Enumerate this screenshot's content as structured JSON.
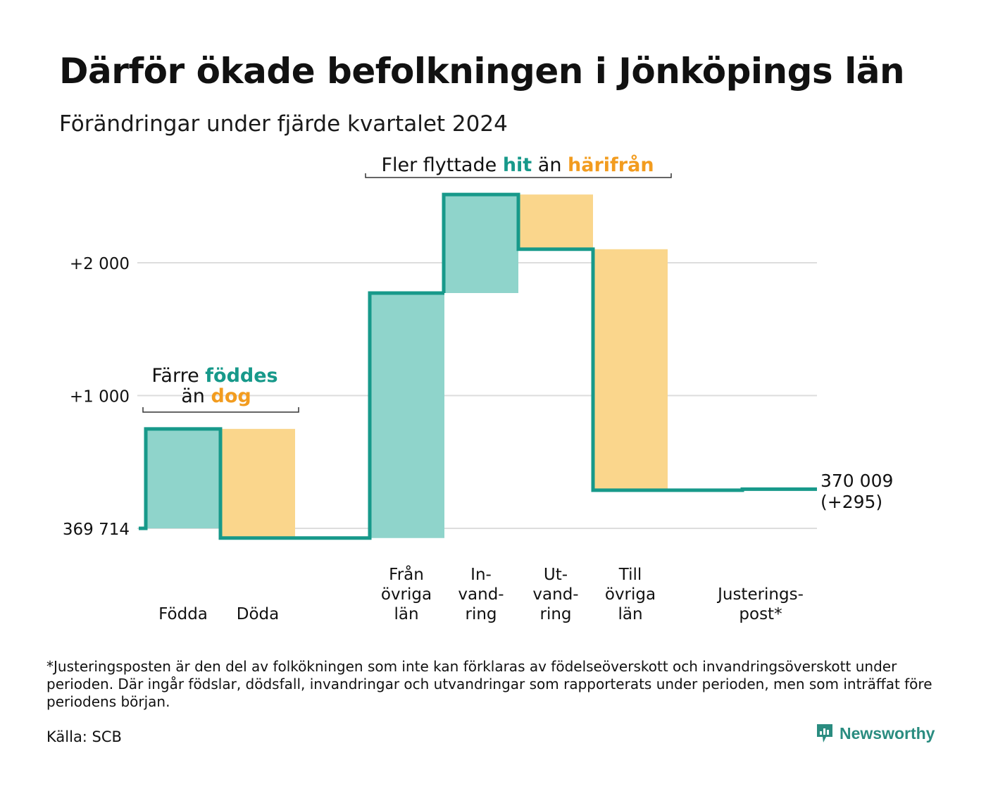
{
  "title": "Därför ökade befolkningen i Jönköpings län",
  "subtitle": "Förändringar under fjärde kvartalet 2024",
  "colors": {
    "increase": "#8fd4cb",
    "decrease": "#fad68c",
    "line": "#17998a",
    "accent_orange": "#f29c1f",
    "grid": "#dddddd"
  },
  "chart_data": {
    "type": "waterfall",
    "start_value": 369714,
    "y_ticks": [
      {
        "value": 0,
        "label": "369 714"
      },
      {
        "value": 1000,
        "label": "+1 000"
      },
      {
        "value": 2000,
        "label": "+2 000"
      }
    ],
    "steps": [
      {
        "label_lines": [
          "Födda"
        ],
        "delta": 749,
        "kind": "increase"
      },
      {
        "label_lines": [
          "Döda"
        ],
        "delta": -822,
        "kind": "decrease"
      },
      {
        "label_lines": [
          "Från",
          "övriga",
          "län"
        ],
        "delta": 1845,
        "kind": "increase"
      },
      {
        "label_lines": [
          "In-",
          "vand-",
          "ring"
        ],
        "delta": 742,
        "kind": "increase"
      },
      {
        "label_lines": [
          "Ut-",
          "vand-",
          "ring"
        ],
        "delta": -412,
        "kind": "decrease"
      },
      {
        "label_lines": [
          "Till",
          "övriga",
          "län"
        ],
        "delta": -1815,
        "kind": "decrease"
      },
      {
        "label_lines": [
          "Justerings-",
          "post*"
        ],
        "delta": 8,
        "kind": "increase"
      }
    ],
    "end_value_label": "370 009",
    "end_change_label": "(+295)",
    "annotations": [
      {
        "parts": [
          {
            "text": "Färre ",
            "style": "normal"
          },
          {
            "text": "föddes",
            "style": "teal"
          }
        ],
        "line2": [
          {
            "text": "än ",
            "style": "normal"
          },
          {
            "text": "dog",
            "style": "orange"
          }
        ]
      },
      {
        "parts": [
          {
            "text": "Fler flyttade ",
            "style": "normal"
          },
          {
            "text": "hit",
            "style": "teal"
          },
          {
            "text": " än ",
            "style": "normal"
          },
          {
            "text": "härifrån",
            "style": "orange"
          }
        ]
      }
    ]
  },
  "footnote": "*Justeringsposten är den del av folkökningen som inte kan förklaras av födelseöverskott och invandringsöverskott under perioden. Där ingår födslar, dödsfall, invandringar och utvandringar som rapporterats under perioden, men som inträffat före periodens början.",
  "source": "Källa: SCB",
  "brand": {
    "name": "Newsworthy",
    "icon": "newsworthy-logo-icon"
  }
}
